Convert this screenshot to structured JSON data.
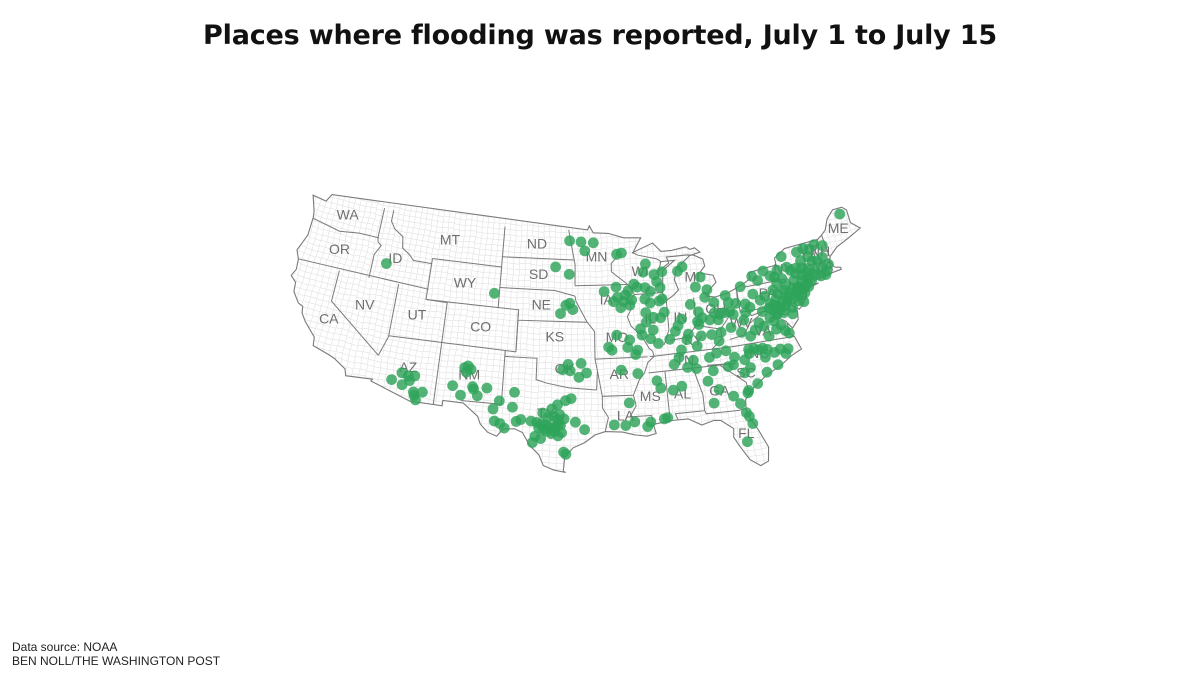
{
  "title": "Places where flooding was reported, July 1 to July 15",
  "source": "Data source: NOAA",
  "credit": "BEN NOLL/THE WASHINGTON POST",
  "colors": {
    "dot": "#2ea35a",
    "border": "#7a7a7a",
    "county": "#e2e2e2",
    "land": "#ffffff"
  },
  "states": [
    {
      "name": "WA",
      "lon": -120.6,
      "lat": 47.4
    },
    {
      "name": "OR",
      "lon": -120.5,
      "lat": 43.9
    },
    {
      "name": "CA",
      "lon": -119.8,
      "lat": 37.2
    },
    {
      "name": "NV",
      "lon": -116.8,
      "lat": 39.3
    },
    {
      "name": "ID",
      "lon": -114.8,
      "lat": 44.3
    },
    {
      "name": "MT",
      "lon": -109.6,
      "lat": 47.0
    },
    {
      "name": "WY",
      "lon": -107.5,
      "lat": 43.0
    },
    {
      "name": "UT",
      "lon": -111.7,
      "lat": 39.3
    },
    {
      "name": "AZ",
      "lon": -111.7,
      "lat": 34.3
    },
    {
      "name": "CO",
      "lon": -105.5,
      "lat": 39.0
    },
    {
      "name": "NM",
      "lon": -106.1,
      "lat": 34.4
    },
    {
      "name": "ND",
      "lon": -100.5,
      "lat": 47.4
    },
    {
      "name": "SD",
      "lon": -100.2,
      "lat": 44.4
    },
    {
      "name": "NE",
      "lon": -99.8,
      "lat": 41.5
    },
    {
      "name": "KS",
      "lon": -98.4,
      "lat": 38.5
    },
    {
      "name": "OK",
      "lon": -97.4,
      "lat": 35.5
    },
    {
      "name": "TX",
      "lon": -99.0,
      "lat": 31.3
    },
    {
      "name": "MN",
      "lon": -94.3,
      "lat": 46.2
    },
    {
      "name": "IA",
      "lon": -93.4,
      "lat": 42.0
    },
    {
      "name": "MO",
      "lon": -92.5,
      "lat": 38.4
    },
    {
      "name": "AR",
      "lon": -92.4,
      "lat": 34.9
    },
    {
      "name": "LA",
      "lon": -92.0,
      "lat": 31.0
    },
    {
      "name": "WI",
      "lon": -89.9,
      "lat": 44.6
    },
    {
      "name": "IL",
      "lon": -89.2,
      "lat": 40.0
    },
    {
      "name": "MI",
      "lon": -84.7,
      "lat": 43.6
    },
    {
      "name": "IN",
      "lon": -86.3,
      "lat": 39.9
    },
    {
      "name": "OH",
      "lon": -82.8,
      "lat": 40.3
    },
    {
      "name": "KY",
      "lon": -85.3,
      "lat": 37.6
    },
    {
      "name": "TN",
      "lon": -86.3,
      "lat": 35.8
    },
    {
      "name": "MS",
      "lon": -89.7,
      "lat": 32.7
    },
    {
      "name": "AL",
      "lon": -86.8,
      "lat": 32.7
    },
    {
      "name": "GA",
      "lon": -83.5,
      "lat": 32.6
    },
    {
      "name": "FL",
      "lon": -81.7,
      "lat": 28.3
    },
    {
      "name": "SC",
      "lon": -80.9,
      "lat": 33.9
    },
    {
      "name": "NC",
      "lon": -79.4,
      "lat": 35.5
    },
    {
      "name": "VA",
      "lon": -78.7,
      "lat": 37.5
    },
    {
      "name": "WV",
      "lon": -80.6,
      "lat": 38.6
    },
    {
      "name": "PA",
      "lon": -77.6,
      "lat": 40.9
    },
    {
      "name": "NY",
      "lon": -75.6,
      "lat": 42.9
    },
    {
      "name": "VT",
      "lon": -72.7,
      "lat": 44.1
    },
    {
      "name": "NH",
      "lon": -71.6,
      "lat": 43.7
    },
    {
      "name": "ME",
      "lon": -69.2,
      "lat": 45.4
    },
    {
      "name": "MA",
      "lon": -71.7,
      "lat": 42.3
    },
    {
      "name": "CT",
      "lon": -72.7,
      "lat": 41.6
    },
    {
      "name": "NJ",
      "lon": -74.6,
      "lat": 40.1
    },
    {
      "name": "MD",
      "lon": -76.8,
      "lat": 39.1
    }
  ],
  "flood_reports": [
    {
      "lon": -115.6,
      "lat": 43.7
    },
    {
      "lon": -104.5,
      "lat": 42.4
    },
    {
      "lon": -113.0,
      "lat": 33.0
    },
    {
      "lon": -112.2,
      "lat": 33.8
    },
    {
      "lon": -111.6,
      "lat": 33.6
    },
    {
      "lon": -111.0,
      "lat": 33.7
    },
    {
      "lon": -111.4,
      "lat": 33.2
    },
    {
      "lon": -112.0,
      "lat": 32.7
    },
    {
      "lon": -110.9,
      "lat": 32.2
    },
    {
      "lon": -110.8,
      "lat": 31.9
    },
    {
      "lon": -110.1,
      "lat": 32.3
    },
    {
      "lon": -110.6,
      "lat": 31.5
    },
    {
      "lon": -106.6,
      "lat": 35.1
    },
    {
      "lon": -106.3,
      "lat": 35.3
    },
    {
      "lon": -106.0,
      "lat": 35.0
    },
    {
      "lon": -106.4,
      "lat": 34.7
    },
    {
      "lon": -107.5,
      "lat": 33.3
    },
    {
      "lon": -106.7,
      "lat": 32.5
    },
    {
      "lon": -105.7,
      "lat": 33.4
    },
    {
      "lon": -105.2,
      "lat": 32.6
    },
    {
      "lon": -104.4,
      "lat": 33.4
    },
    {
      "lon": -105.6,
      "lat": 33.2
    },
    {
      "lon": -103.2,
      "lat": 32.3
    },
    {
      "lon": -103.7,
      "lat": 31.5
    },
    {
      "lon": -102.0,
      "lat": 31.8
    },
    {
      "lon": -101.9,
      "lat": 33.2
    },
    {
      "lon": -103.5,
      "lat": 30.4
    },
    {
      "lon": -102.6,
      "lat": 29.8
    },
    {
      "lon": -103.0,
      "lat": 30.2
    },
    {
      "lon": -101.2,
      "lat": 30.7
    },
    {
      "lon": -101.6,
      "lat": 30.5
    },
    {
      "lon": -100.3,
      "lat": 30.6
    },
    {
      "lon": -99.8,
      "lat": 30.5
    },
    {
      "lon": -99.4,
      "lat": 30.4
    },
    {
      "lon": -99.0,
      "lat": 30.3
    },
    {
      "lon": -98.7,
      "lat": 30.1
    },
    {
      "lon": -98.4,
      "lat": 30.0
    },
    {
      "lon": -98.1,
      "lat": 30.2
    },
    {
      "lon": -97.9,
      "lat": 30.4
    },
    {
      "lon": -99.6,
      "lat": 30.0
    },
    {
      "lon": -99.2,
      "lat": 29.9
    },
    {
      "lon": -98.9,
      "lat": 29.7
    },
    {
      "lon": -98.5,
      "lat": 29.5
    },
    {
      "lon": -98.2,
      "lat": 29.7
    },
    {
      "lon": -97.7,
      "lat": 30.3
    },
    {
      "lon": -97.4,
      "lat": 30.9
    },
    {
      "lon": -97.8,
      "lat": 31.3
    },
    {
      "lon": -98.3,
      "lat": 31.1
    },
    {
      "lon": -98.8,
      "lat": 31.0
    },
    {
      "lon": -99.3,
      "lat": 31.4
    },
    {
      "lon": -97.9,
      "lat": 30.8
    },
    {
      "lon": -97.6,
      "lat": 29.6
    },
    {
      "lon": -97.9,
      "lat": 29.3
    },
    {
      "lon": -99.9,
      "lat": 29.2
    },
    {
      "lon": -99.4,
      "lat": 29.0
    },
    {
      "lon": -98.5,
      "lat": 31.8
    },
    {
      "lon": -97.3,
      "lat": 32.6
    },
    {
      "lon": -98.0,
      "lat": 32.2
    },
    {
      "lon": -96.8,
      "lat": 32.8
    },
    {
      "lon": -96.4,
      "lat": 30.6
    },
    {
      "lon": -95.6,
      "lat": 29.9
    },
    {
      "lon": -100.1,
      "lat": 28.6
    },
    {
      "lon": -97.2,
      "lat": 27.6
    },
    {
      "lon": -97.4,
      "lat": 27.8
    },
    {
      "lon": -95.9,
      "lat": 36.1
    },
    {
      "lon": -96.9,
      "lat": 35.4
    },
    {
      "lon": -97.1,
      "lat": 36.0
    },
    {
      "lon": -97.6,
      "lat": 35.5
    },
    {
      "lon": -95.4,
      "lat": 35.2
    },
    {
      "lon": -96.1,
      "lat": 34.8
    },
    {
      "lon": -97.1,
      "lat": 47.9
    },
    {
      "lon": -95.9,
      "lat": 47.8
    },
    {
      "lon": -94.6,
      "lat": 47.7
    },
    {
      "lon": -95.5,
      "lat": 46.9
    },
    {
      "lon": -92.2,
      "lat": 46.5
    },
    {
      "lon": -91.7,
      "lat": 46.6
    },
    {
      "lon": -98.5,
      "lat": 45.3
    },
    {
      "lon": -97.1,
      "lat": 44.6
    },
    {
      "lon": -97.0,
      "lat": 41.8
    },
    {
      "lon": -97.4,
      "lat": 41.6
    },
    {
      "lon": -96.7,
      "lat": 41.2
    },
    {
      "lon": -97.9,
      "lat": 40.8
    },
    {
      "lon": -93.6,
      "lat": 42.9
    },
    {
      "lon": -92.3,
      "lat": 42.3
    },
    {
      "lon": -91.5,
      "lat": 42.5
    },
    {
      "lon": -92.7,
      "lat": 41.9
    },
    {
      "lon": -91.7,
      "lat": 41.9
    },
    {
      "lon": -91.1,
      "lat": 41.5
    },
    {
      "lon": -92.0,
      "lat": 41.3
    },
    {
      "lon": -91.2,
      "lat": 42.9
    },
    {
      "lon": -92.4,
      "lat": 43.3
    },
    {
      "lon": -90.9,
      "lat": 42.0
    },
    {
      "lon": -90.3,
      "lat": 43.2
    },
    {
      "lon": -90.6,
      "lat": 43.5
    },
    {
      "lon": -89.5,
      "lat": 43.1
    },
    {
      "lon": -89.0,
      "lat": 42.7
    },
    {
      "lon": -88.3,
      "lat": 43.6
    },
    {
      "lon": -88.0,
      "lat": 43.0
    },
    {
      "lon": -88.5,
      "lat": 44.3
    },
    {
      "lon": -89.6,
      "lat": 44.6
    },
    {
      "lon": -87.7,
      "lat": 44.5
    },
    {
      "lon": -89.3,
      "lat": 45.4
    },
    {
      "lon": -89.6,
      "lat": 42.0
    },
    {
      "lon": -89.1,
      "lat": 41.6
    },
    {
      "lon": -88.2,
      "lat": 41.7
    },
    {
      "lon": -87.9,
      "lat": 41.9
    },
    {
      "lon": -89.6,
      "lat": 40.7
    },
    {
      "lon": -88.2,
      "lat": 40.1
    },
    {
      "lon": -89.6,
      "lat": 39.8
    },
    {
      "lon": -90.2,
      "lat": 39.2
    },
    {
      "lon": -89.0,
      "lat": 39.0
    },
    {
      "lon": -90.1,
      "lat": 38.6
    },
    {
      "lon": -89.3,
      "lat": 38.2
    },
    {
      "lon": -88.6,
      "lat": 37.7
    },
    {
      "lon": -87.8,
      "lat": 40.6
    },
    {
      "lon": -88.9,
      "lat": 40.2
    },
    {
      "lon": -92.5,
      "lat": 38.7
    },
    {
      "lon": -91.5,
      "lat": 37.5
    },
    {
      "lon": -93.0,
      "lat": 37.3
    },
    {
      "lon": -93.3,
      "lat": 37.6
    },
    {
      "lon": -90.6,
      "lat": 37.2
    },
    {
      "lon": -91.3,
      "lat": 38.2
    },
    {
      "lon": -90.8,
      "lat": 36.8
    },
    {
      "lon": -92.2,
      "lat": 35.4
    },
    {
      "lon": -90.7,
      "lat": 35.0
    },
    {
      "lon": -91.2,
      "lat": 30.5
    },
    {
      "lon": -90.1,
      "lat": 30.0
    },
    {
      "lon": -89.8,
      "lat": 30.4
    },
    {
      "lon": -88.6,
      "lat": 30.6
    },
    {
      "lon": -88.3,
      "lat": 30.7
    },
    {
      "lon": -92.0,
      "lat": 30.2
    },
    {
      "lon": -93.0,
      "lat": 30.3
    },
    {
      "lon": -91.6,
      "lat": 32.3
    },
    {
      "lon": -89.0,
      "lat": 34.2
    },
    {
      "lon": -85.6,
      "lat": 44.8
    },
    {
      "lon": -83.4,
      "lat": 42.3
    },
    {
      "lon": -84.5,
      "lat": 42.7
    },
    {
      "lon": -83.9,
      "lat": 43.6
    },
    {
      "lon": -86.1,
      "lat": 44.4
    },
    {
      "lon": -85.2,
      "lat": 41.1
    },
    {
      "lon": -86.2,
      "lat": 39.8
    },
    {
      "lon": -86.9,
      "lat": 38.7
    },
    {
      "lon": -85.7,
      "lat": 38.3
    },
    {
      "lon": -84.6,
      "lat": 39.1
    },
    {
      "lon": -87.5,
      "lat": 38.0
    },
    {
      "lon": -86.6,
      "lat": 39.2
    },
    {
      "lon": -84.2,
      "lat": 39.7
    },
    {
      "lon": -83.0,
      "lat": 40.0
    },
    {
      "lon": -82.5,
      "lat": 39.8
    },
    {
      "lon": -81.7,
      "lat": 41.5
    },
    {
      "lon": -81.5,
      "lat": 40.8
    },
    {
      "lon": -82.9,
      "lat": 41.0
    },
    {
      "lon": -84.5,
      "lat": 40.3
    },
    {
      "lon": -80.8,
      "lat": 40.6
    },
    {
      "lon": -81.2,
      "lat": 39.6
    },
    {
      "lon": -83.5,
      "lat": 39.4
    },
    {
      "lon": -82.7,
      "lat": 39.3
    },
    {
      "lon": -82.0,
      "lat": 39.9
    },
    {
      "lon": -81.5,
      "lat": 39.9
    },
    {
      "lon": -84.7,
      "lat": 39.4
    },
    {
      "lon": -83.7,
      "lat": 41.6
    },
    {
      "lon": -84.5,
      "lat": 38.0
    },
    {
      "lon": -83.5,
      "lat": 38.0
    },
    {
      "lon": -82.6,
      "lat": 38.1
    },
    {
      "lon": -82.9,
      "lat": 37.3
    },
    {
      "lon": -85.0,
      "lat": 37.1
    },
    {
      "lon": -85.9,
      "lat": 37.8
    },
    {
      "lon": -86.5,
      "lat": 36.9
    },
    {
      "lon": -86.8,
      "lat": 36.2
    },
    {
      "lon": -85.3,
      "lat": 35.0
    },
    {
      "lon": -84.0,
      "lat": 35.9
    },
    {
      "lon": -83.3,
      "lat": 36.2
    },
    {
      "lon": -82.4,
      "lat": 36.3
    },
    {
      "lon": -85.5,
      "lat": 35.8
    },
    {
      "lon": -87.3,
      "lat": 35.6
    },
    {
      "lon": -86.1,
      "lat": 35.2
    },
    {
      "lon": -87.6,
      "lat": 33.2
    },
    {
      "lon": -86.8,
      "lat": 33.5
    },
    {
      "lon": -88.7,
      "lat": 33.5
    },
    {
      "lon": -84.4,
      "lat": 33.7
    },
    {
      "lon": -83.5,
      "lat": 32.8
    },
    {
      "lon": -81.8,
      "lat": 31.2
    },
    {
      "lon": -84.1,
      "lat": 31.6
    },
    {
      "lon": -83.8,
      "lat": 34.6
    },
    {
      "lon": -82.3,
      "lat": 32.0
    },
    {
      "lon": -81.2,
      "lat": 29.9
    },
    {
      "lon": -81.4,
      "lat": 30.3
    },
    {
      "lon": -81.7,
      "lat": 27.6
    },
    {
      "lon": -81.0,
      "lat": 29.2
    },
    {
      "lon": -81.0,
      "lat": 34.0
    },
    {
      "lon": -80.0,
      "lat": 32.8
    },
    {
      "lon": -79.0,
      "lat": 33.7
    },
    {
      "lon": -80.4,
      "lat": 34.4
    },
    {
      "lon": -81.9,
      "lat": 34.9
    },
    {
      "lon": -82.4,
      "lat": 34.8
    },
    {
      "lon": -80.9,
      "lat": 32.3
    },
    {
      "lon": -81.0,
      "lat": 32.1
    },
    {
      "lon": -78.6,
      "lat": 35.8
    },
    {
      "lon": -79.8,
      "lat": 36.1
    },
    {
      "lon": -80.8,
      "lat": 35.2
    },
    {
      "lon": -77.9,
      "lat": 34.2
    },
    {
      "lon": -77.0,
      "lat": 35.1
    },
    {
      "lon": -76.7,
      "lat": 35.5
    },
    {
      "lon": -78.9,
      "lat": 35.1
    },
    {
      "lon": -79.4,
      "lat": 35.9
    },
    {
      "lon": -78.0,
      "lat": 35.4
    },
    {
      "lon": -77.4,
      "lat": 35.6
    },
    {
      "lon": -81.7,
      "lat": 35.6
    },
    {
      "lon": -80.3,
      "lat": 35.7
    },
    {
      "lon": -79.0,
      "lat": 36.0
    },
    {
      "lon": -80.3,
      "lat": 36.1
    },
    {
      "lon": -77.4,
      "lat": 37.5
    },
    {
      "lon": -78.5,
      "lat": 38.0
    },
    {
      "lon": -79.9,
      "lat": 37.3
    },
    {
      "lon": -77.1,
      "lat": 38.8
    },
    {
      "lon": -76.3,
      "lat": 36.9
    },
    {
      "lon": -78.9,
      "lat": 38.4
    },
    {
      "lon": -77.5,
      "lat": 38.3
    },
    {
      "lon": -76.6,
      "lat": 37.2
    },
    {
      "lon": -78.2,
      "lat": 37.0
    },
    {
      "lon": -77.8,
      "lat": 38.7
    },
    {
      "lon": -79.4,
      "lat": 37.8
    },
    {
      "lon": -76.9,
      "lat": 37.8
    },
    {
      "lon": -81.6,
      "lat": 38.4
    },
    {
      "lon": -80.3,
      "lat": 38.9
    },
    {
      "lon": -80.0,
      "lat": 39.6
    },
    {
      "lon": -78.4,
      "lat": 39.4
    },
    {
      "lon": -80.7,
      "lat": 37.8
    },
    {
      "lon": -76.6,
      "lat": 39.3
    },
    {
      "lon": -77.0,
      "lat": 39.0
    },
    {
      "lon": -77.4,
      "lat": 39.4
    },
    {
      "lon": -76.1,
      "lat": 39.5
    },
    {
      "lon": -75.5,
      "lat": 39.2
    },
    {
      "lon": -76.9,
      "lat": 39.6
    },
    {
      "lon": -77.7,
      "lat": 39.6
    },
    {
      "lon": -76.4,
      "lat": 38.9
    },
    {
      "lon": -75.6,
      "lat": 38.6
    },
    {
      "lon": -75.9,
      "lat": 39.8
    },
    {
      "lon": -75.2,
      "lat": 40.0
    },
    {
      "lon": -75.4,
      "lat": 40.6
    },
    {
      "lon": -76.3,
      "lat": 40.0
    },
    {
      "lon": -76.9,
      "lat": 40.3
    },
    {
      "lon": -75.7,
      "lat": 41.4
    },
    {
      "lon": -76.5,
      "lat": 41.8
    },
    {
      "lon": -77.9,
      "lat": 40.8
    },
    {
      "lon": -78.4,
      "lat": 40.5
    },
    {
      "lon": -79.9,
      "lat": 40.4
    },
    {
      "lon": -79.0,
      "lat": 41.2
    },
    {
      "lon": -80.1,
      "lat": 42.1
    },
    {
      "lon": -75.1,
      "lat": 41.0
    },
    {
      "lon": -77.0,
      "lat": 41.2
    },
    {
      "lon": -75.9,
      "lat": 40.4
    },
    {
      "lon": -76.6,
      "lat": 40.8
    },
    {
      "lon": -77.5,
      "lat": 40.0
    },
    {
      "lon": -79.5,
      "lat": 40.0
    },
    {
      "lon": -75.6,
      "lat": 40.3
    },
    {
      "lon": -77.2,
      "lat": 39.8
    },
    {
      "lon": -76.0,
      "lat": 41.0
    },
    {
      "lon": -74.4,
      "lat": 40.6
    },
    {
      "lon": -74.6,
      "lat": 40.2
    },
    {
      "lon": -74.2,
      "lat": 40.9
    },
    {
      "lon": -74.8,
      "lat": 39.7
    },
    {
      "lon": -74.3,
      "lat": 39.5
    },
    {
      "lon": -74.0,
      "lat": 40.3
    },
    {
      "lon": -74.5,
      "lat": 41.0
    },
    {
      "lon": -74.7,
      "lat": 40.8
    },
    {
      "lon": -73.9,
      "lat": 40.8
    },
    {
      "lon": -73.5,
      "lat": 40.8
    },
    {
      "lon": -74.0,
      "lat": 41.5
    },
    {
      "lon": -73.8,
      "lat": 42.7
    },
    {
      "lon": -74.5,
      "lat": 42.3
    },
    {
      "lon": -75.9,
      "lat": 42.1
    },
    {
      "lon": -76.2,
      "lat": 43.0
    },
    {
      "lon": -75.2,
      "lat": 43.1
    },
    {
      "lon": -73.7,
      "lat": 43.4
    },
    {
      "lon": -77.6,
      "lat": 43.2
    },
    {
      "lon": -78.8,
      "lat": 42.9
    },
    {
      "lon": -74.9,
      "lat": 42.7
    },
    {
      "lon": -73.9,
      "lat": 42.0
    },
    {
      "lon": -74.8,
      "lat": 41.7
    },
    {
      "lon": -76.6,
      "lat": 42.4
    },
    {
      "lon": -73.6,
      "lat": 41.1
    },
    {
      "lon": -74.3,
      "lat": 42.8
    },
    {
      "lon": -73.9,
      "lat": 44.3
    },
    {
      "lon": -75.5,
      "lat": 44.2
    },
    {
      "lon": -77.0,
      "lat": 42.6
    },
    {
      "lon": -78.3,
      "lat": 42.4
    },
    {
      "lon": -73.4,
      "lat": 42.2
    },
    {
      "lon": -73.2,
      "lat": 44.5
    },
    {
      "lon": -72.6,
      "lat": 44.3
    },
    {
      "lon": -72.0,
      "lat": 44.6
    },
    {
      "lon": -72.9,
      "lat": 43.6
    },
    {
      "lon": -72.6,
      "lat": 43.1
    },
    {
      "lon": -71.5,
      "lat": 43.2
    },
    {
      "lon": -71.2,
      "lat": 44.3
    },
    {
      "lon": -72.1,
      "lat": 43.0
    },
    {
      "lon": -72.6,
      "lat": 42.1
    },
    {
      "lon": -71.8,
      "lat": 42.3
    },
    {
      "lon": -71.1,
      "lat": 42.4
    },
    {
      "lon": -73.2,
      "lat": 42.5
    },
    {
      "lon": -72.7,
      "lat": 41.8
    },
    {
      "lon": -73.1,
      "lat": 41.3
    },
    {
      "lon": -72.1,
      "lat": 41.5
    },
    {
      "lon": -73.4,
      "lat": 41.6
    },
    {
      "lon": -71.4,
      "lat": 41.8
    },
    {
      "lon": -71.6,
      "lat": 41.5
    },
    {
      "lon": -68.6,
      "lat": 46.8
    }
  ]
}
